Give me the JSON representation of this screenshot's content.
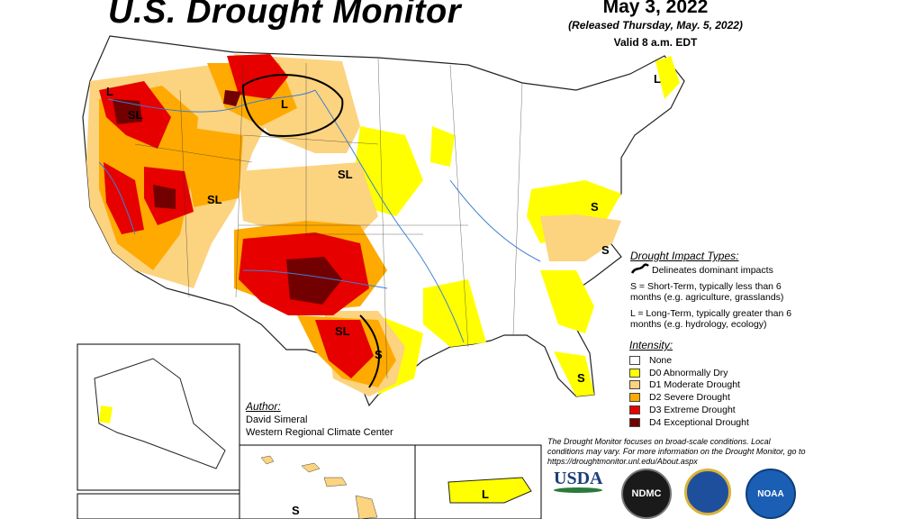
{
  "header": {
    "title": "U.S. Drought Monitor",
    "date": "May 3, 2022",
    "released": "(Released Thursday, May. 5, 2022)",
    "valid": "Valid 8 a.m. EDT"
  },
  "impact_legend": {
    "title": "Drought Impact Types:",
    "delineates": "Delineates dominant impacts",
    "short_term": "S = Short-Term, typically less than 6 months (e.g. agriculture, grasslands)",
    "long_term": "L = Long-Term, typically greater than 6 months (e.g. hydrology, ecology)"
  },
  "intensity_legend": {
    "title": "Intensity:",
    "items": [
      {
        "label": "None",
        "color": "#ffffff"
      },
      {
        "label": "D0 Abnormally Dry",
        "color": "#ffff00"
      },
      {
        "label": "D1 Moderate Drought",
        "color": "#fcd37f"
      },
      {
        "label": "D2 Severe Drought",
        "color": "#ffaa00"
      },
      {
        "label": "D3 Extreme Drought",
        "color": "#e60000"
      },
      {
        "label": "D4 Exceptional Drought",
        "color": "#730000"
      }
    ]
  },
  "author": {
    "title": "Author:",
    "name": "David Simeral",
    "org": "Western Regional Climate Center"
  },
  "footer_note": "The Drought Monitor focuses on broad-scale conditions. Local conditions may vary. For more information on the Drought Monitor, go to https://droughtmonitor.unl.edu/About.aspx",
  "logos": {
    "usda": "USDA",
    "ndmc": "NDMC",
    "noaa": "NOAA"
  },
  "map_labels": {
    "l_northwest": "L",
    "sl_oregon": "SL",
    "l_montana": "L",
    "l_maine": "L",
    "sl_nevada": "SL",
    "sl_nebraska": "SL",
    "s_virginia": "S",
    "s_carolina": "S",
    "sl_texas": "SL",
    "s_gulf": "S",
    "s_florida": "S",
    "l_puerto_rico": "L",
    "s_hawaii": "S"
  }
}
